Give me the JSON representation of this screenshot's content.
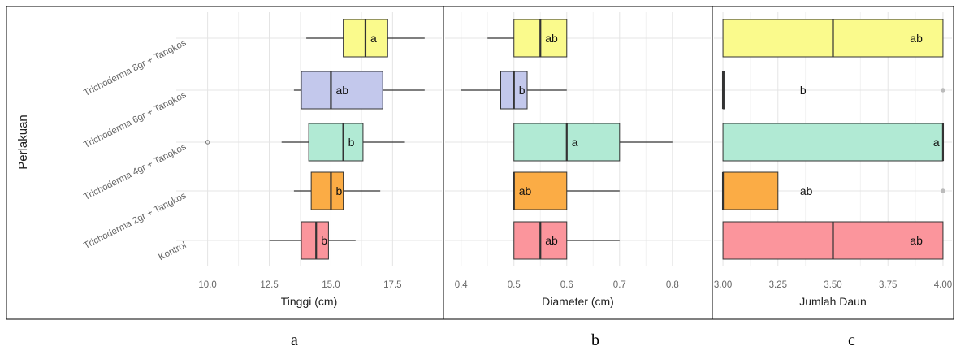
{
  "y_axis_title": "Perlakuan",
  "treatments": [
    "Trichoderma 8gr + Tangkos",
    "Trichoderma 6gr + Tangkos",
    "Trichoderma 4gr + Tangkos",
    "Trichoderma 2gr + Tangkos",
    "Kontrol"
  ],
  "fill_colors": [
    "#fafa8c",
    "#c3c8ec",
    "#b1ead4",
    "#fbac45",
    "#fb959c"
  ],
  "panel_captions": [
    "a",
    "b",
    "c"
  ],
  "chart_data": [
    {
      "type": "boxplot",
      "xlabel": "Tinggi (cm)",
      "ylabel": "Perlakuan",
      "xlim": [
        9.6,
        18.8
      ],
      "xticks": [
        "10.0",
        "12.5",
        "15.0",
        "17.5"
      ],
      "xtick_values": [
        10.0,
        12.5,
        15.0,
        17.5
      ],
      "grid": true,
      "boxes": [
        {
          "category": "Trichoderma 8gr + Tangkos",
          "whisker_low": 14.0,
          "q1": 15.5,
          "median": 16.4,
          "q3": 17.3,
          "whisker_high": 18.8,
          "outliers": [],
          "label": "a"
        },
        {
          "category": "Trichoderma 6gr + Tangkos",
          "whisker_low": 13.5,
          "q1": 13.8,
          "median": 15.0,
          "q3": 17.1,
          "whisker_high": 18.8,
          "outliers": [],
          "label": "ab"
        },
        {
          "category": "Trichoderma 4gr + Tangkos",
          "whisker_low": 13.0,
          "q1": 14.1,
          "median": 15.5,
          "q3": 16.3,
          "whisker_high": 18.0,
          "outliers": [
            10.0
          ],
          "label": "b"
        },
        {
          "category": "Trichoderma 2gr + Tangkos",
          "whisker_low": 13.5,
          "q1": 14.2,
          "median": 15.0,
          "q3": 15.5,
          "whisker_high": 17.0,
          "outliers": [],
          "label": "b"
        },
        {
          "category": "Kontrol",
          "whisker_low": 12.5,
          "q1": 13.8,
          "median": 14.4,
          "q3": 14.9,
          "whisker_high": 16.0,
          "outliers": [],
          "label": "b"
        }
      ]
    },
    {
      "type": "boxplot",
      "xlabel": "Diameter (cm)",
      "xlim": [
        0.39,
        0.84
      ],
      "xticks": [
        "0.4",
        "0.5",
        "0.6",
        "0.7",
        "0.8"
      ],
      "xtick_values": [
        0.4,
        0.5,
        0.6,
        0.7,
        0.8
      ],
      "grid": true,
      "boxes": [
        {
          "category": "Trichoderma 8gr + Tangkos",
          "whisker_low": 0.45,
          "q1": 0.5,
          "median": 0.55,
          "q3": 0.6,
          "whisker_high": 0.6,
          "outliers": [],
          "label": "ab"
        },
        {
          "category": "Trichoderma 6gr + Tangkos",
          "whisker_low": 0.4,
          "q1": 0.475,
          "median": 0.5,
          "q3": 0.525,
          "whisker_high": 0.6,
          "outliers": [],
          "label": "b"
        },
        {
          "category": "Trichoderma 4gr + Tangkos",
          "whisker_low": 0.5,
          "q1": 0.5,
          "median": 0.6,
          "q3": 0.7,
          "whisker_high": 0.8,
          "outliers": [],
          "label": "a"
        },
        {
          "category": "Trichoderma 2gr + Tangkos",
          "whisker_low": 0.5,
          "q1": 0.5,
          "median": 0.5,
          "q3": 0.6,
          "whisker_high": 0.7,
          "outliers": [],
          "label": "ab"
        },
        {
          "category": "Kontrol",
          "whisker_low": 0.5,
          "q1": 0.5,
          "median": 0.55,
          "q3": 0.6,
          "whisker_high": 0.7,
          "outliers": [],
          "label": "ab"
        }
      ]
    },
    {
      "type": "boxplot",
      "xlabel": "Jumlah Daun",
      "xlim": [
        3.0,
        4.0
      ],
      "xticks": [
        "3.00",
        "3.25",
        "3.50",
        "3.75",
        "4.00"
      ],
      "xtick_values": [
        3.0,
        3.25,
        3.5,
        3.75,
        4.0
      ],
      "grid": true,
      "boxes": [
        {
          "category": "Trichoderma 8gr + Tangkos",
          "whisker_low": 3.0,
          "q1": 3.0,
          "median": 3.5,
          "q3": 4.0,
          "whisker_high": 4.0,
          "outliers": [],
          "label": "ab"
        },
        {
          "category": "Trichoderma 6gr + Tangkos",
          "whisker_low": 3.0,
          "q1": 3.0,
          "median": 3.0,
          "q3": 3.0,
          "whisker_high": 3.0,
          "outliers": [
            4.0
          ],
          "label": "b"
        },
        {
          "category": "Trichoderma 4gr + Tangkos",
          "whisker_low": 3.0,
          "q1": 3.0,
          "median": 4.0,
          "q3": 4.0,
          "whisker_high": 4.0,
          "outliers": [],
          "label": "a"
        },
        {
          "category": "Trichoderma 2gr + Tangkos",
          "whisker_low": 3.0,
          "q1": 3.0,
          "median": 3.0,
          "q3": 3.25,
          "whisker_high": 3.25,
          "outliers": [
            4.0
          ],
          "label": "ab"
        },
        {
          "category": "Kontrol",
          "whisker_low": 3.0,
          "q1": 3.0,
          "median": 3.5,
          "q3": 4.0,
          "whisker_high": 4.0,
          "outliers": [],
          "label": "ab"
        }
      ]
    }
  ]
}
